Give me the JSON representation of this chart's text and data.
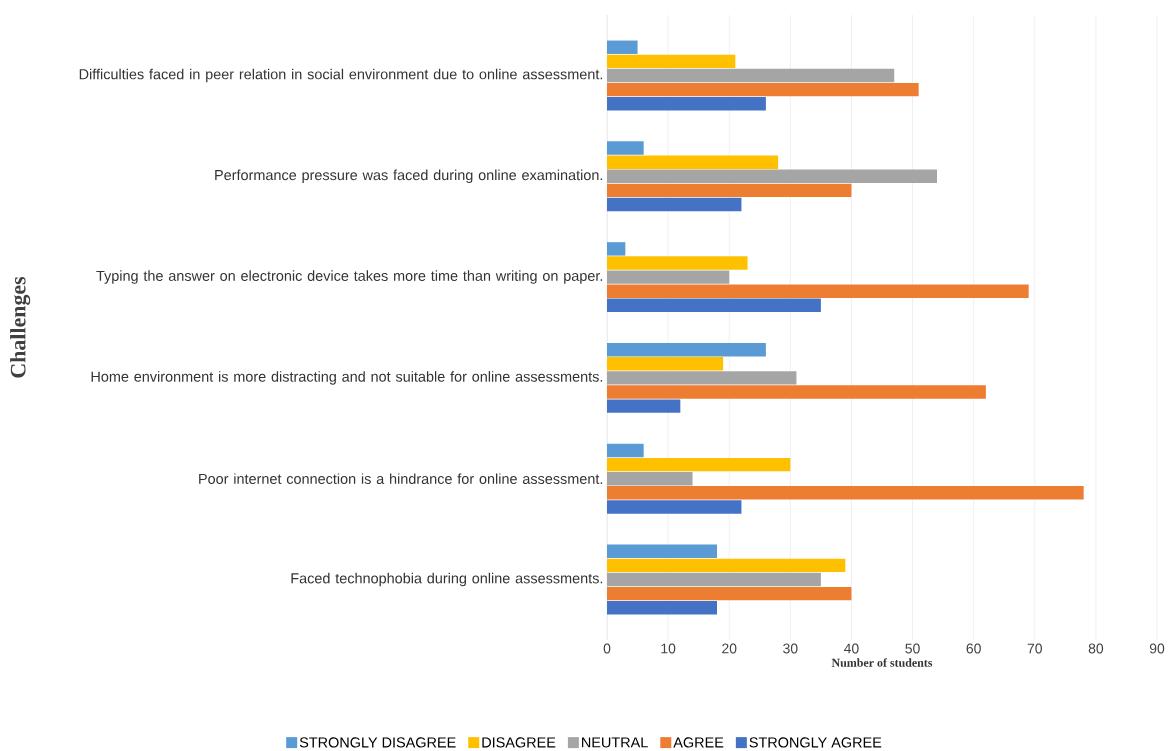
{
  "chart_data": {
    "type": "bar",
    "orientation": "horizontal",
    "xlabel": "Number of students",
    "ylabel": "Challenges",
    "categories": [
      "Difficulties faced in peer relation in social environment due to online assessment.",
      "Performance pressure was faced during online examination.",
      "Typing the answer on electronic device takes more time than writing on paper.",
      "Home environment is more distracting and not suitable for online assessments.",
      "Poor internet connection is a hindrance for online assessment.",
      "Faced technophobia during online assessments."
    ],
    "series": [
      {
        "name": "STRONGLY DISAGREE",
        "color": "#5b9bd5",
        "values": [
          5,
          6,
          3,
          26,
          6,
          18
        ]
      },
      {
        "name": "DISAGREE",
        "color": "#ffc000",
        "values": [
          21,
          28,
          23,
          19,
          30,
          39
        ]
      },
      {
        "name": "NEUTRAL",
        "color": "#a5a5a5",
        "values": [
          47,
          54,
          20,
          31,
          14,
          35
        ]
      },
      {
        "name": "AGREE",
        "color": "#ed7d31",
        "values": [
          51,
          40,
          69,
          62,
          78,
          40
        ]
      },
      {
        "name": "STRONGLY AGREE",
        "color": "#4472c4",
        "values": [
          26,
          22,
          35,
          12,
          22,
          18
        ]
      }
    ],
    "xlim": [
      0,
      90
    ],
    "xticks": [
      0,
      10,
      20,
      30,
      40,
      50,
      60,
      70,
      80,
      90
    ],
    "grid": "x",
    "legend": "bottom"
  }
}
